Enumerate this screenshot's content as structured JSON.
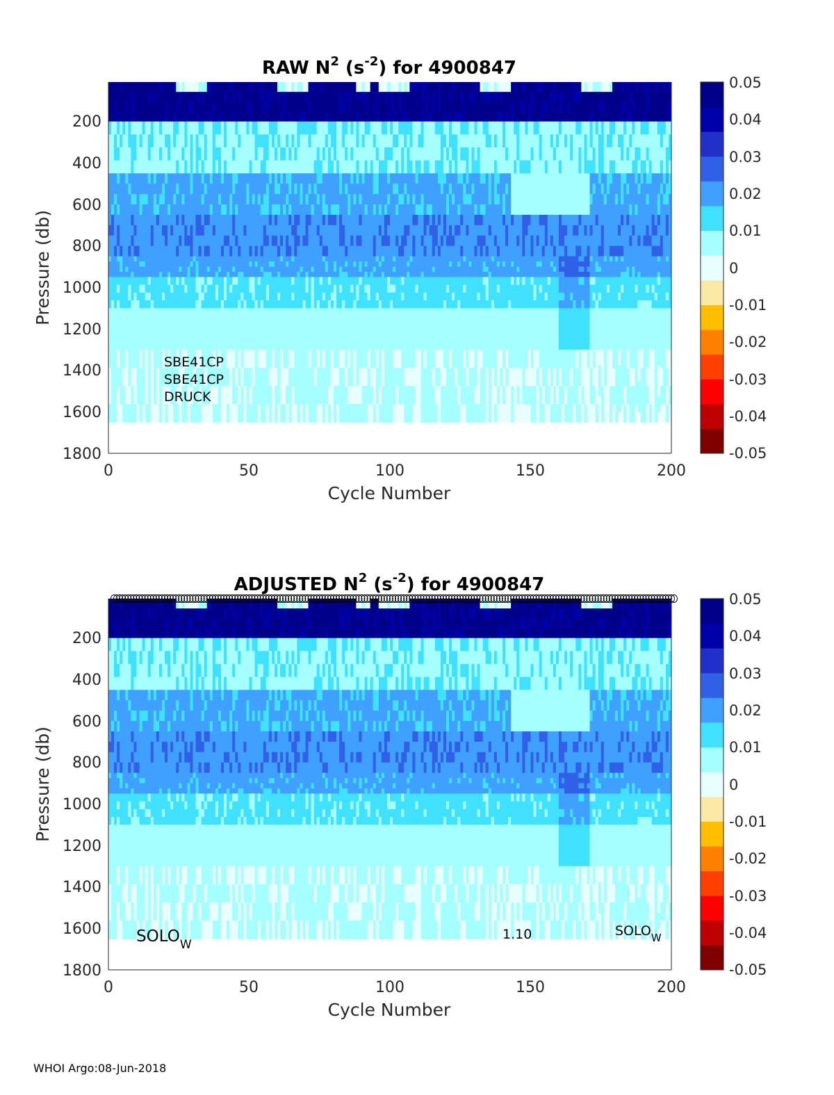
{
  "footer": "WHOI Argo:08-Jun-2018",
  "colorbar": {
    "min": -0.05,
    "max": 0.05,
    "ticks": [
      "0.05",
      "0.04",
      "0.03",
      "0.02",
      "0.01",
      "0",
      "-0.01",
      "-0.02",
      "-0.03",
      "-0.04",
      "-0.05"
    ],
    "colors": [
      "#800000",
      "#bf0000",
      "#ff0000",
      "#ff4000",
      "#ff8000",
      "#ffbf00",
      "#fce8a6",
      "#e8ffff",
      "#a6ffff",
      "#40e0ff",
      "#40a0ff",
      "#3060e8",
      "#2030c8",
      "#0000aa",
      "#00008b"
    ]
  },
  "chart_data": [
    {
      "type": "heatmap",
      "title_main": "RAW N",
      "title_sup1": "2",
      "title_mid": " (s",
      "title_sup2": "-2",
      "title_end": ") for 4900847",
      "xlabel": "Cycle Number",
      "ylabel": "Pressure (db)",
      "xlim": [
        0,
        200
      ],
      "ylim": [
        1800,
        10
      ],
      "xticks": [
        "0",
        "50",
        "100",
        "150",
        "200"
      ],
      "yticks": [
        "200",
        "400",
        "600",
        "800",
        "1000",
        "1200",
        "1400",
        "1600",
        "1800"
      ],
      "annotations": [
        "SBE41CP",
        "SBE41CP",
        "DRUCK"
      ],
      "layers": [
        {
          "p_top": 10,
          "p_bottom": 200,
          "value": 0.045
        },
        {
          "p_top": 200,
          "p_bottom": 450,
          "value": 0.009
        },
        {
          "p_top": 450,
          "p_bottom": 650,
          "value": 0.018
        },
        {
          "p_top": 650,
          "p_bottom": 850,
          "value": 0.022
        },
        {
          "p_top": 850,
          "p_bottom": 950,
          "value": 0.019
        },
        {
          "p_top": 950,
          "p_bottom": 1100,
          "value": 0.012
        },
        {
          "p_top": 1100,
          "p_bottom": 1300,
          "value": 0.007
        },
        {
          "p_top": 1300,
          "p_bottom": 1650,
          "value": 0.004
        }
      ]
    },
    {
      "type": "heatmap",
      "title_main": "ADJUSTED N",
      "title_sup1": "2",
      "title_mid": " (s",
      "title_sup2": "-2",
      "title_end": ") for 4900847",
      "xlabel": "Cycle Number",
      "ylabel": "Pressure (db)",
      "xlim": [
        0,
        200
      ],
      "ylim": [
        1800,
        10
      ],
      "xticks": [
        "0",
        "50",
        "100",
        "150",
        "200"
      ],
      "yticks": [
        "200",
        "400",
        "600",
        "800",
        "1000",
        "1200",
        "1400",
        "1600",
        "1800"
      ],
      "annotations": [
        "SOLO",
        "W",
        "1.10",
        "SOLO",
        "W"
      ],
      "markers_row": "open circles at top for each cycle 1-200",
      "layers": [
        {
          "p_top": 10,
          "p_bottom": 200,
          "value": 0.045
        },
        {
          "p_top": 200,
          "p_bottom": 450,
          "value": 0.009
        },
        {
          "p_top": 450,
          "p_bottom": 650,
          "value": 0.018
        },
        {
          "p_top": 650,
          "p_bottom": 850,
          "value": 0.022
        },
        {
          "p_top": 850,
          "p_bottom": 950,
          "value": 0.019
        },
        {
          "p_top": 950,
          "p_bottom": 1100,
          "value": 0.012
        },
        {
          "p_top": 1100,
          "p_bottom": 1300,
          "value": 0.007
        },
        {
          "p_top": 1300,
          "p_bottom": 1650,
          "value": 0.004
        }
      ]
    }
  ]
}
